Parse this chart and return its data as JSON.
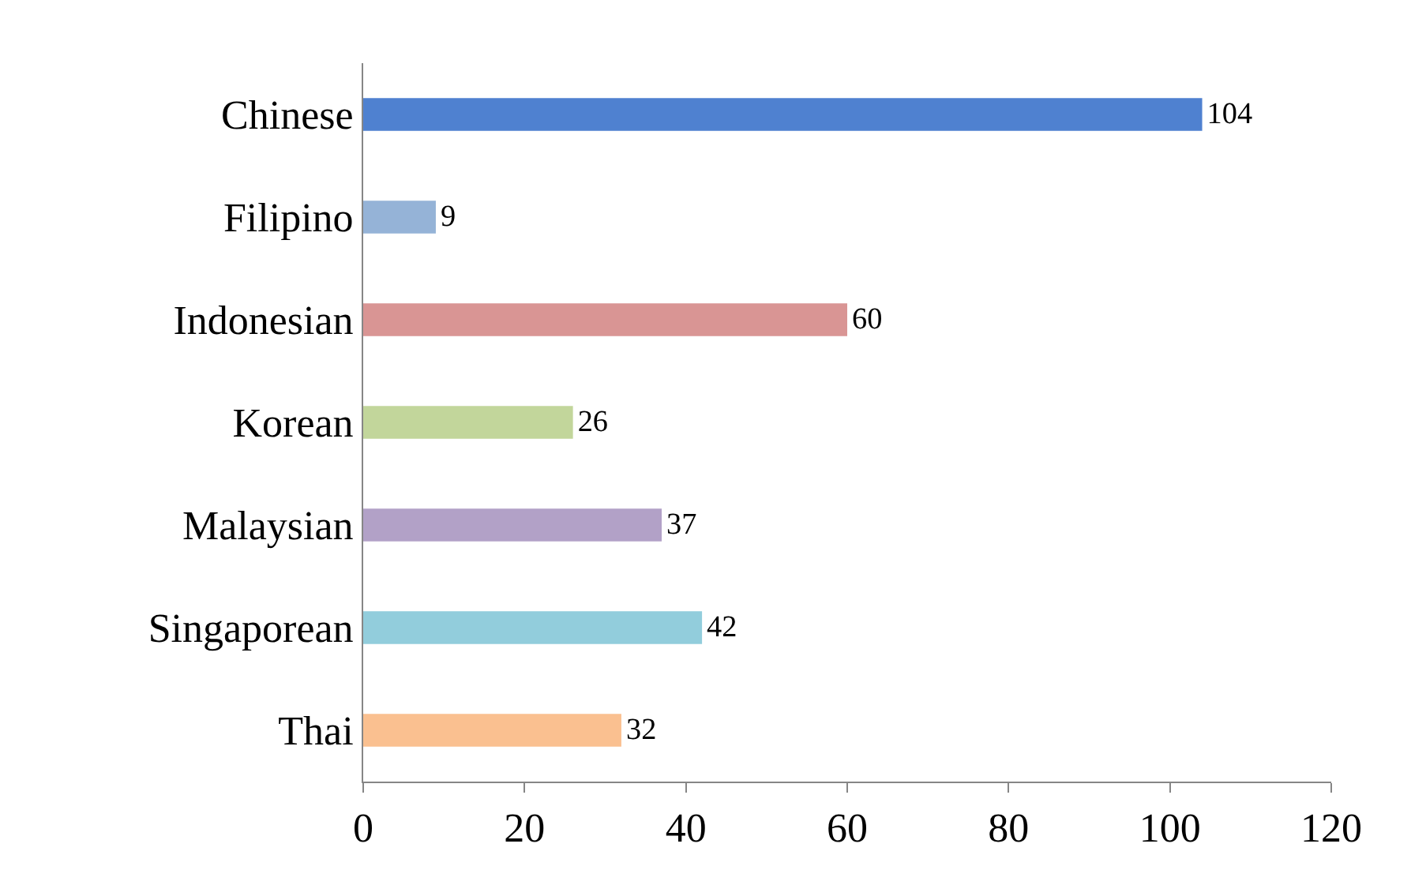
{
  "chart_data": {
    "type": "bar",
    "orientation": "horizontal",
    "categories": [
      "Chinese",
      "Filipino",
      "Indonesian",
      "Korean",
      "Malaysian",
      "Singaporean",
      "Thai"
    ],
    "values": [
      104,
      9,
      60,
      26,
      37,
      42,
      32
    ],
    "colors": [
      "#4f81d0",
      "#95b3d7",
      "#d99594",
      "#c2d69b",
      "#b2a1c7",
      "#92cddc",
      "#fac090"
    ],
    "xlim": [
      0,
      120
    ],
    "xticks": [
      0,
      20,
      40,
      60,
      80,
      100,
      120
    ],
    "data_labels": true
  }
}
